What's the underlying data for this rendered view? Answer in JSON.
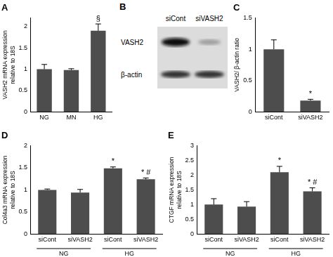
{
  "chart_data": [
    {
      "type": "bar",
      "title": "A",
      "ylabel": [
        "VASH2 mRNA expression",
        "relative to 18S"
      ],
      "categories": [
        "NG",
        "MN",
        "HG"
      ],
      "values": [
        1.0,
        0.98,
        1.9
      ],
      "errors": [
        0.11,
        0.03,
        0.16
      ],
      "annotations": [
        null,
        null,
        "§"
      ],
      "color": "#4d4d4d",
      "ylim": [
        0,
        2.2
      ],
      "yticks": [
        0,
        0.5,
        1,
        1.5,
        2
      ],
      "grid": false
    },
    {
      "type": "bar",
      "title": "C",
      "ylabel": [
        "VASH2/ β-actin ratio"
      ],
      "categories": [
        "siCont",
        "siVASH2"
      ],
      "values": [
        1.0,
        0.18
      ],
      "errors": [
        0.15,
        0.02
      ],
      "annotations": [
        null,
        "*"
      ],
      "color": "#4d4d4d",
      "ylim": [
        0,
        1.5
      ],
      "yticks": [
        0,
        0.5,
        1,
        1.5
      ],
      "grid": false
    },
    {
      "type": "bar",
      "title": "D",
      "ylabel": [
        "Col4a3 mRNA expression",
        "relative to 18S"
      ],
      "categories": [
        "siCont",
        "siVASH2",
        "siCont",
        "siVASH2"
      ],
      "group_labels": [
        "NG",
        "HG"
      ],
      "values": [
        1.0,
        0.94,
        1.49,
        1.24
      ],
      "errors": [
        0.02,
        0.07,
        0.03,
        0.03
      ],
      "annotations": [
        null,
        null,
        "*",
        "* #"
      ],
      "color": "#4d4d4d",
      "ylim": [
        0,
        2
      ],
      "yticks": [
        0,
        0.5,
        1,
        1.5,
        2
      ],
      "grid": false
    },
    {
      "type": "bar",
      "title": "E",
      "ylabel": [
        "CTGF mRNA expression",
        "relative to 18S"
      ],
      "categories": [
        "siCont",
        "siVASH2",
        "siCont",
        "siVASH2"
      ],
      "group_labels": [
        "NG",
        "HG"
      ],
      "values": [
        1.0,
        0.93,
        2.1,
        1.45
      ],
      "errors": [
        0.2,
        0.17,
        0.2,
        0.12
      ],
      "annotations": [
        null,
        null,
        "*",
        "* #"
      ],
      "color": "#4d4d4d",
      "ylim": [
        0,
        3
      ],
      "yticks": [
        0,
        0.5,
        1,
        1.5,
        2,
        2.5,
        3
      ],
      "grid": false
    }
  ],
  "blot": {
    "title": "B",
    "lanes": [
      "siCont",
      "siVASH2"
    ],
    "rows": [
      "VASH2",
      "β-actin"
    ]
  }
}
